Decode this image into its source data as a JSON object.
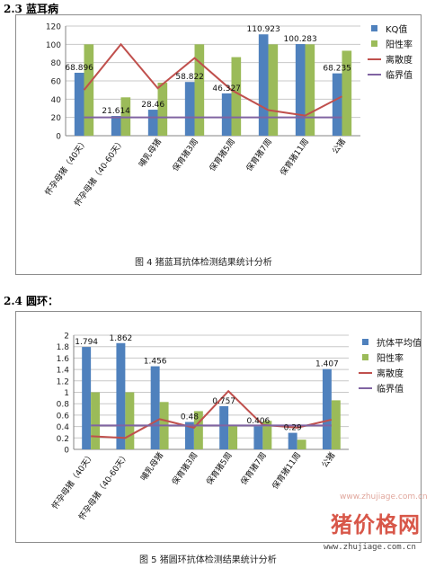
{
  "headings": {
    "section1": "2.3 蓝耳病",
    "section2": "2.4 圆环："
  },
  "captions": {
    "chart1": "图 4 猪蓝耳抗体检测结果统计分析",
    "chart2": "图 5 猪圆环抗体检测结果统计分析"
  },
  "watermark": {
    "brand": "猪价格网",
    "url": "www.zhujiage.com.cn",
    "faint": "www.zhujiage.com.cn"
  },
  "colors": {
    "blue": "#4f81bd",
    "green": "#9bbb59",
    "red": "#c0504d",
    "purple": "#8064a2"
  },
  "chart_data": [
    {
      "type": "bar",
      "categories": [
        "怀孕母猪（40天）",
        "怀孕母猪（40-60天）",
        "哺乳母猪",
        "保育猪3周",
        "保育猪5周",
        "保育猪7周",
        "保育猪11周",
        "公猪"
      ],
      "ylim": [
        0,
        120
      ],
      "yticks": [
        0,
        20,
        40,
        60,
        80,
        100,
        120
      ],
      "grid": true,
      "legend_position": "right",
      "series": [
        {
          "name": "KQ值",
          "kind": "bar",
          "color": "#4f81bd",
          "values": [
            68.896,
            21.614,
            28.46,
            58.822,
            46.327,
            110.923,
            100.283,
            68.235
          ]
        },
        {
          "name": "阳性率",
          "kind": "bar",
          "color": "#9bbb59",
          "values": [
            100,
            42,
            58,
            100,
            86,
            100,
            100,
            93
          ]
        },
        {
          "name": "离散度",
          "kind": "line",
          "color": "#c0504d",
          "values": [
            50,
            100,
            52,
            85,
            50,
            28,
            22,
            43
          ]
        },
        {
          "name": "临界值",
          "kind": "line",
          "color": "#8064a2",
          "values": [
            20,
            20,
            20,
            20,
            20,
            20,
            20,
            20
          ]
        }
      ],
      "data_labels": [
        "68.896",
        "21.614",
        "28.46",
        "58.822",
        "46.327",
        "110.923",
        "100.283",
        "68.235"
      ]
    },
    {
      "type": "bar",
      "categories": [
        "怀孕母猪（40天）",
        "怀孕母猪（40-60天）",
        "哺乳母猪",
        "保育猪3周",
        "保育猪5周",
        "保育猪7周",
        "保育猪11周",
        "公猪"
      ],
      "ylim": [
        0,
        2
      ],
      "yticks": [
        "0",
        "0.2",
        "0.4",
        "0.6",
        "0.8",
        "1",
        "1.2",
        "1.4",
        "1.6",
        "1.8",
        "2"
      ],
      "grid": true,
      "legend_position": "right",
      "series": [
        {
          "name": "抗体平均值",
          "kind": "bar",
          "color": "#4f81bd",
          "values": [
            1.794,
            1.862,
            1.456,
            0.48,
            0.757,
            0.406,
            0.29,
            1.407
          ]
        },
        {
          "name": "阳性率",
          "kind": "bar",
          "color": "#9bbb59",
          "values": [
            1.0,
            1.0,
            0.83,
            0.67,
            0.42,
            0.5,
            0.17,
            0.86
          ]
        },
        {
          "name": "离散度",
          "kind": "line",
          "color": "#c0504d",
          "values": [
            0.23,
            0.2,
            0.53,
            0.38,
            1.02,
            0.43,
            0.38,
            0.52
          ]
        },
        {
          "name": "临界值",
          "kind": "line",
          "color": "#8064a2",
          "values": [
            0.42,
            0.42,
            0.42,
            0.42,
            0.42,
            0.42,
            0.42,
            0.42
          ]
        }
      ],
      "data_labels": [
        "1.794",
        "1.862",
        "1.456",
        "0.48",
        "0.757",
        "0.406",
        "0.29",
        "1.407"
      ]
    }
  ]
}
